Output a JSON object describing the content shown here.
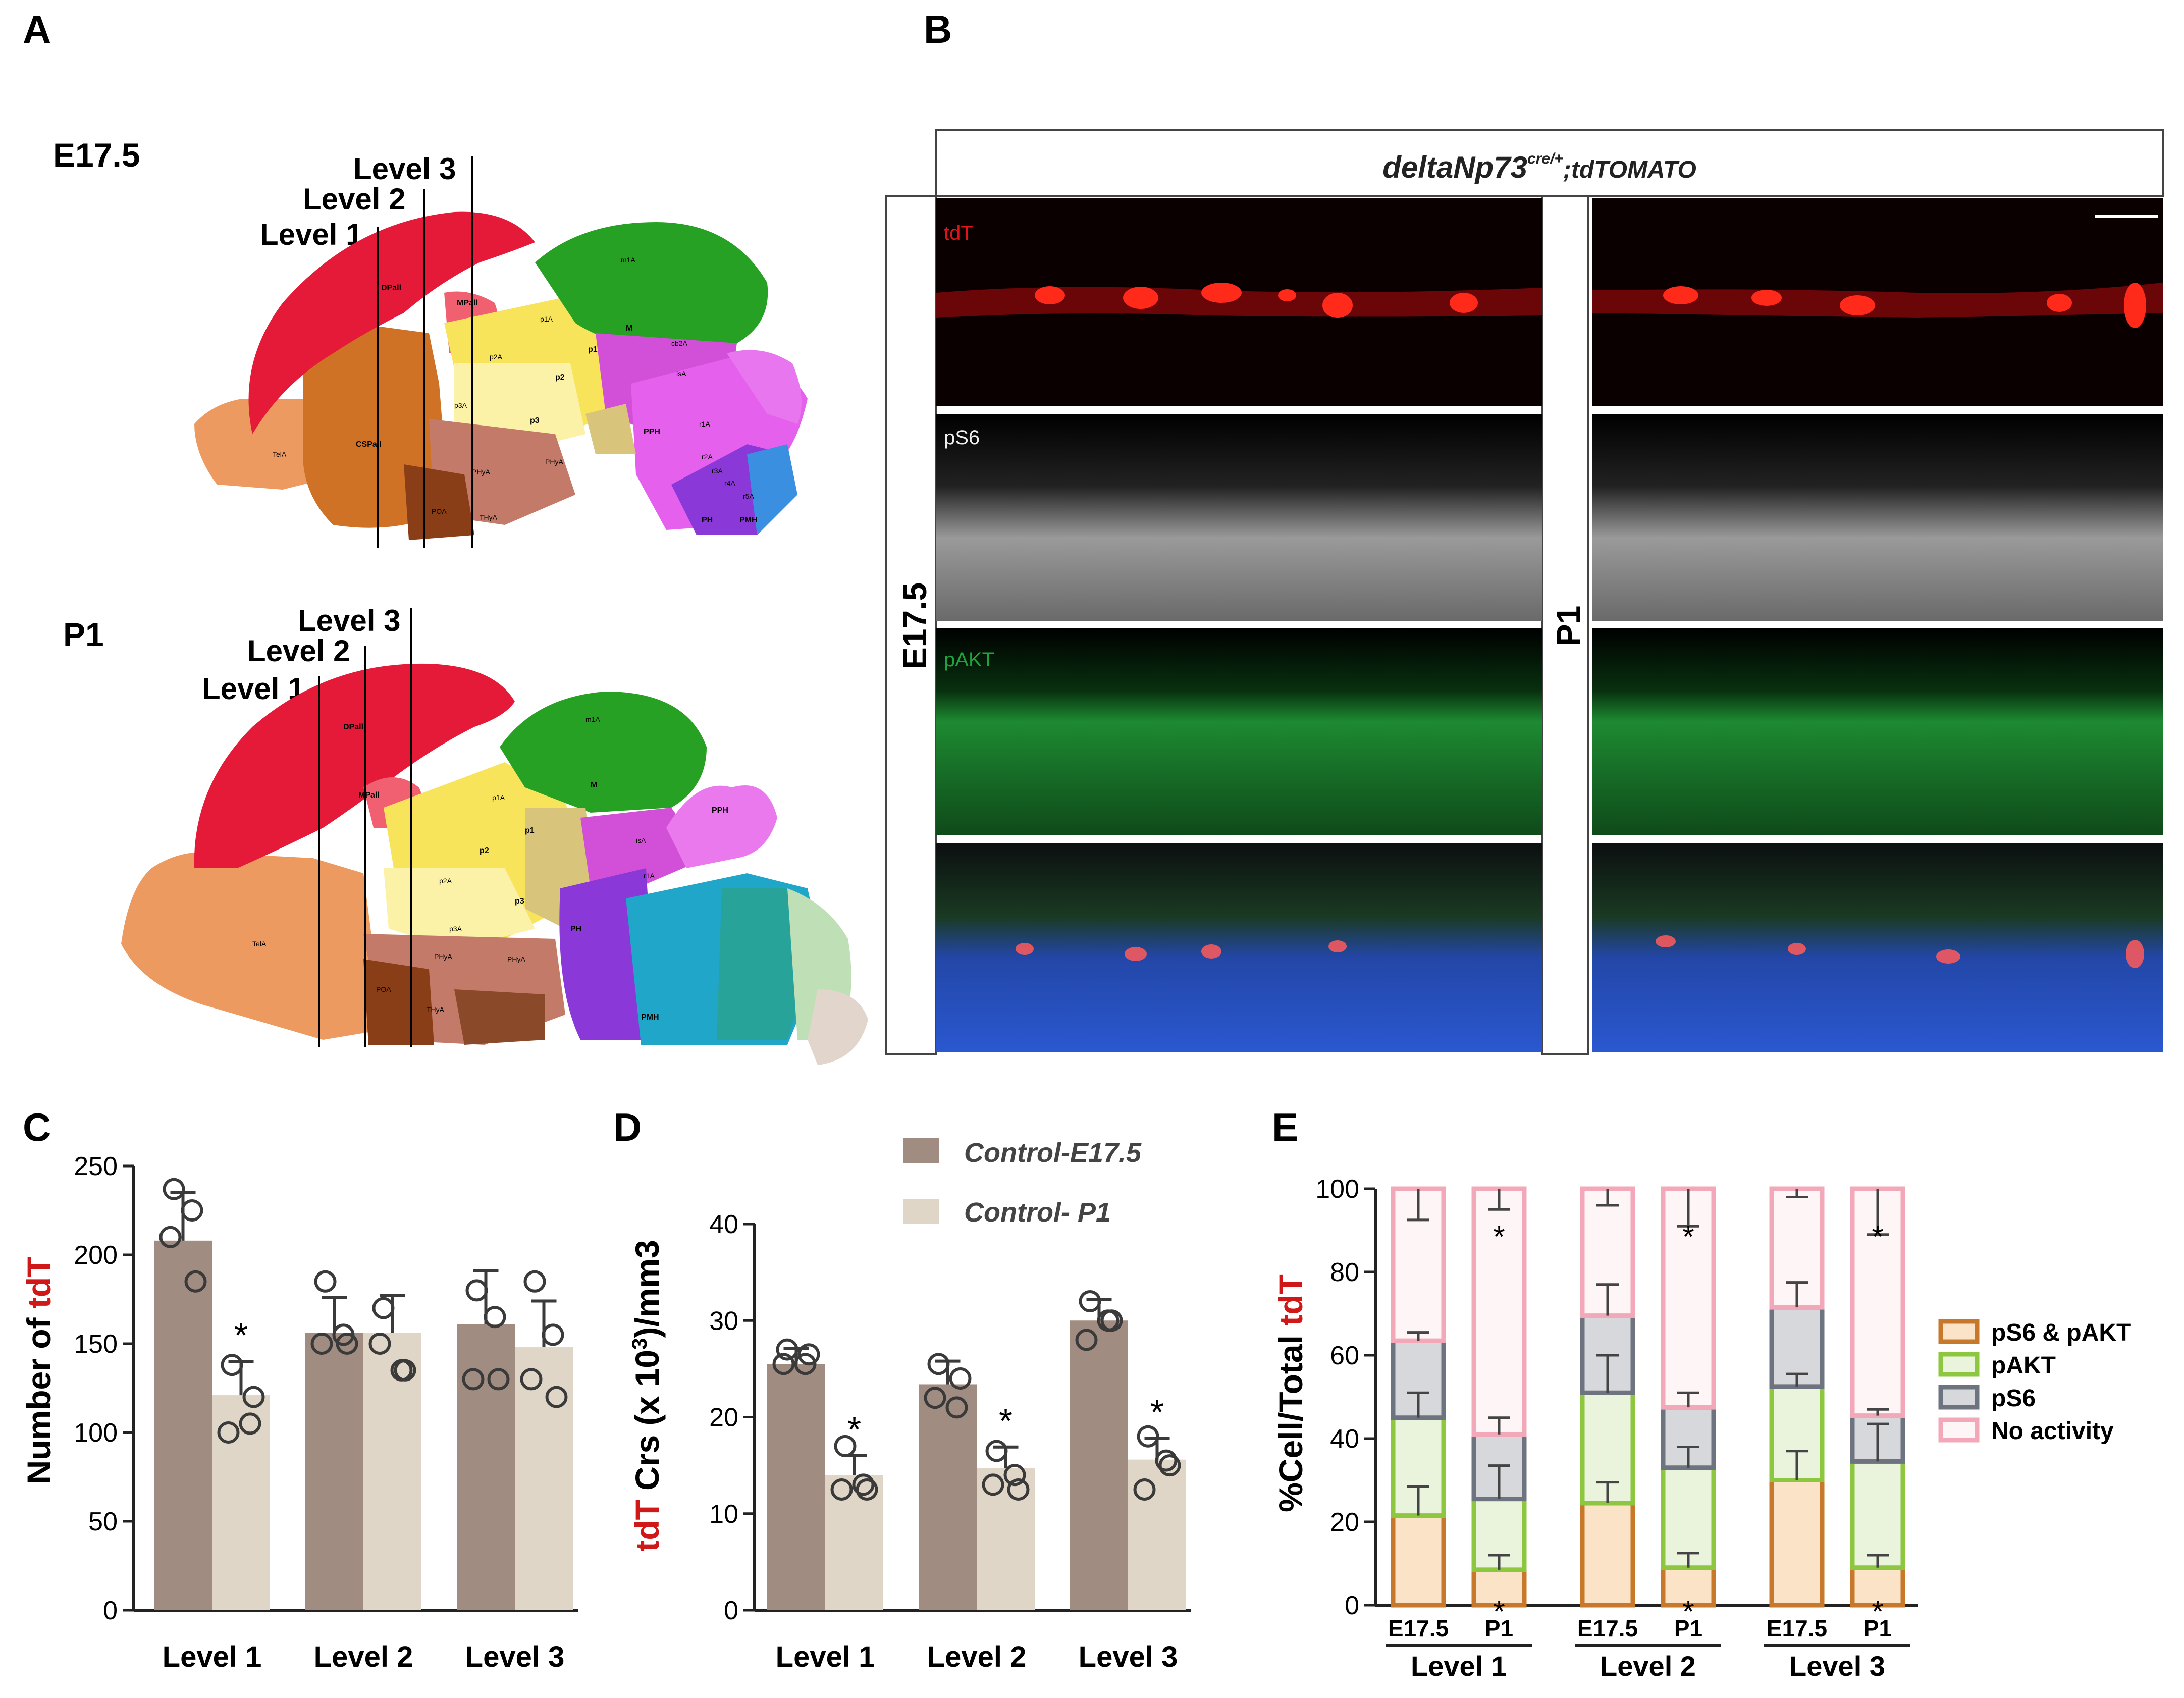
{
  "panel_labels": {
    "a": "A",
    "b": "B",
    "c": "C",
    "d": "D",
    "e": "E"
  },
  "panel_a": {
    "e175": {
      "stage": "E17.5",
      "level_labels": [
        "Level 1",
        "Level 2",
        "Level 3"
      ]
    },
    "p1": {
      "stage": "P1",
      "level_labels": [
        "Level 1",
        "Level 2",
        "Level 3"
      ]
    },
    "region_labels": [
      "DPall",
      "MPall",
      "CSPall",
      "TelA",
      "POA",
      "PHyA",
      "PHyA",
      "THyA",
      "p1",
      "p2",
      "p3",
      "p1A",
      "p2A",
      "p3A",
      "M",
      "isA",
      "PPH",
      "r1A",
      "r2A",
      "r3A",
      "r4A",
      "r5A",
      "PH",
      "PMH",
      "m1A",
      "cb2A"
    ]
  },
  "panel_b": {
    "genotype_main": "deltaNp73",
    "genotype_sup": "cre/+",
    "genotype_tail": ";tdTOMATO",
    "stage_left": "E17.5",
    "stage_right": "P1",
    "channels": [
      "tdT",
      "pS6",
      "pAKT"
    ],
    "colors": {
      "tdT": "#e0151b",
      "pS6": "#e8e8e8",
      "pAKT": "#1fa33a",
      "dapi": "#2a55c8"
    }
  },
  "panel_c": {
    "ylabel_prefix": "Number of ",
    "ylabel_highlight": "tdT",
    "star": "*",
    "chart_data": {
      "type": "bar",
      "title": "",
      "categories": [
        "Level 1",
        "Level 2",
        "Level 3"
      ],
      "ylim": [
        0,
        250
      ],
      "yticks": [
        "0",
        "50",
        "100",
        "150",
        "200",
        "250"
      ],
      "series": [
        {
          "name": "Control-E17.5",
          "values": [
            208,
            156,
            161
          ],
          "errors": [
            27,
            20,
            30
          ],
          "points": [
            [
              237,
              225,
              210,
              185
            ],
            [
              185,
              155,
              150,
              150
            ],
            [
              180,
              165,
              130,
              130
            ]
          ],
          "color": "#a08c80"
        },
        {
          "name": "Control- P1",
          "values": [
            121,
            156,
            148
          ],
          "errors": [
            19,
            21,
            26
          ],
          "points": [
            [
              138,
              105,
              100,
              120
            ],
            [
              170,
              135,
              150,
              135
            ],
            [
              185,
              155,
              130,
              120
            ]
          ],
          "color": "#e0d6c7"
        }
      ],
      "significance": [
        "*",
        "",
        ""
      ]
    }
  },
  "panel_d": {
    "ylabel_highlight": "tdT",
    "ylabel_mid": " Crs (x 10",
    "ylabel_sup": "3",
    "ylabel_tail": ")/mm3",
    "legend": [
      "Control-E17.5",
      "Control- P1"
    ],
    "star": "*",
    "chart_data": {
      "type": "bar",
      "title": "",
      "categories": [
        "Level 1",
        "Level 2",
        "Level 3"
      ],
      "ylim": [
        0,
        40
      ],
      "yticks": [
        "0",
        "10",
        "20",
        "30",
        "40"
      ],
      "series": [
        {
          "name": "Control-E17.5",
          "values": [
            25.5,
            23.4,
            30
          ],
          "errors": [
            1.6,
            2.4,
            2.2
          ],
          "points": [
            [
              27,
              25.5,
              25.5,
              26.5
            ],
            [
              25.5,
              21,
              22,
              24
            ],
            [
              32,
              30,
              28,
              30
            ]
          ],
          "color": "#a08c80"
        },
        {
          "name": "Control- P1",
          "values": [
            14,
            14.7,
            15.6
          ],
          "errors": [
            2,
            2.2,
            2.2
          ],
          "points": [
            [
              17,
              13,
              12.5,
              12.5
            ],
            [
              16.5,
              14,
              13,
              12.5
            ],
            [
              18,
              15.5,
              12.5,
              15
            ]
          ],
          "color": "#e0d6c7"
        }
      ],
      "significance": [
        "*",
        "*",
        "*"
      ]
    }
  },
  "panel_e": {
    "ylabel_prefix": "%Cell/Total ",
    "ylabel_highlight": "tdT",
    "star": "*",
    "legend": [
      "pS6 & pAKT",
      "pAKT",
      "pS6",
      "No activity"
    ],
    "chart_data": {
      "type": "bar",
      "stacked": true,
      "title": "",
      "categories": [
        "E17.5",
        "P1",
        "E17.5",
        "P1",
        "E17.5",
        "P1"
      ],
      "groups": [
        "Level 1",
        "Level 2",
        "Level 3"
      ],
      "ylim": [
        0,
        100
      ],
      "yticks": [
        "0",
        "20",
        "40",
        "60",
        "80",
        "100"
      ],
      "series": [
        {
          "name": "pS6 & pAKT",
          "values": [
            21.5,
            8.5,
            24.5,
            9,
            30,
            9
          ],
          "errors": [
            7,
            3.5,
            5,
            3.5,
            7,
            3
          ],
          "color": "#c8782a",
          "fill": "#fbe3c8"
        },
        {
          "name": "pAKT",
          "values": [
            23.5,
            17,
            26.5,
            24,
            22.5,
            25.5
          ],
          "errors": [
            6,
            8,
            9,
            5,
            3,
            9
          ],
          "color": "#8dc63f",
          "fill": "#eaf4dc"
        },
        {
          "name": "pS6",
          "values": [
            18.5,
            15.5,
            18.5,
            14.5,
            19,
            11
          ],
          "errors": [
            2,
            4,
            7.5,
            3.5,
            6,
            1.5
          ],
          "color": "#6d7480",
          "fill": "#d7d8db"
        },
        {
          "name": "No activity",
          "values": [
            36.5,
            59,
            30.5,
            52.5,
            28.5,
            54.5
          ],
          "errors": [
            7.5,
            5,
            4,
            9,
            2,
            11
          ],
          "color": "#f2a8b8",
          "fill": "#fef6f6"
        }
      ],
      "significance_top": [
        "",
        "*",
        "",
        "*",
        "",
        "*"
      ],
      "significance_bottom": [
        "",
        "*",
        "",
        "*",
        "",
        "*"
      ]
    }
  }
}
